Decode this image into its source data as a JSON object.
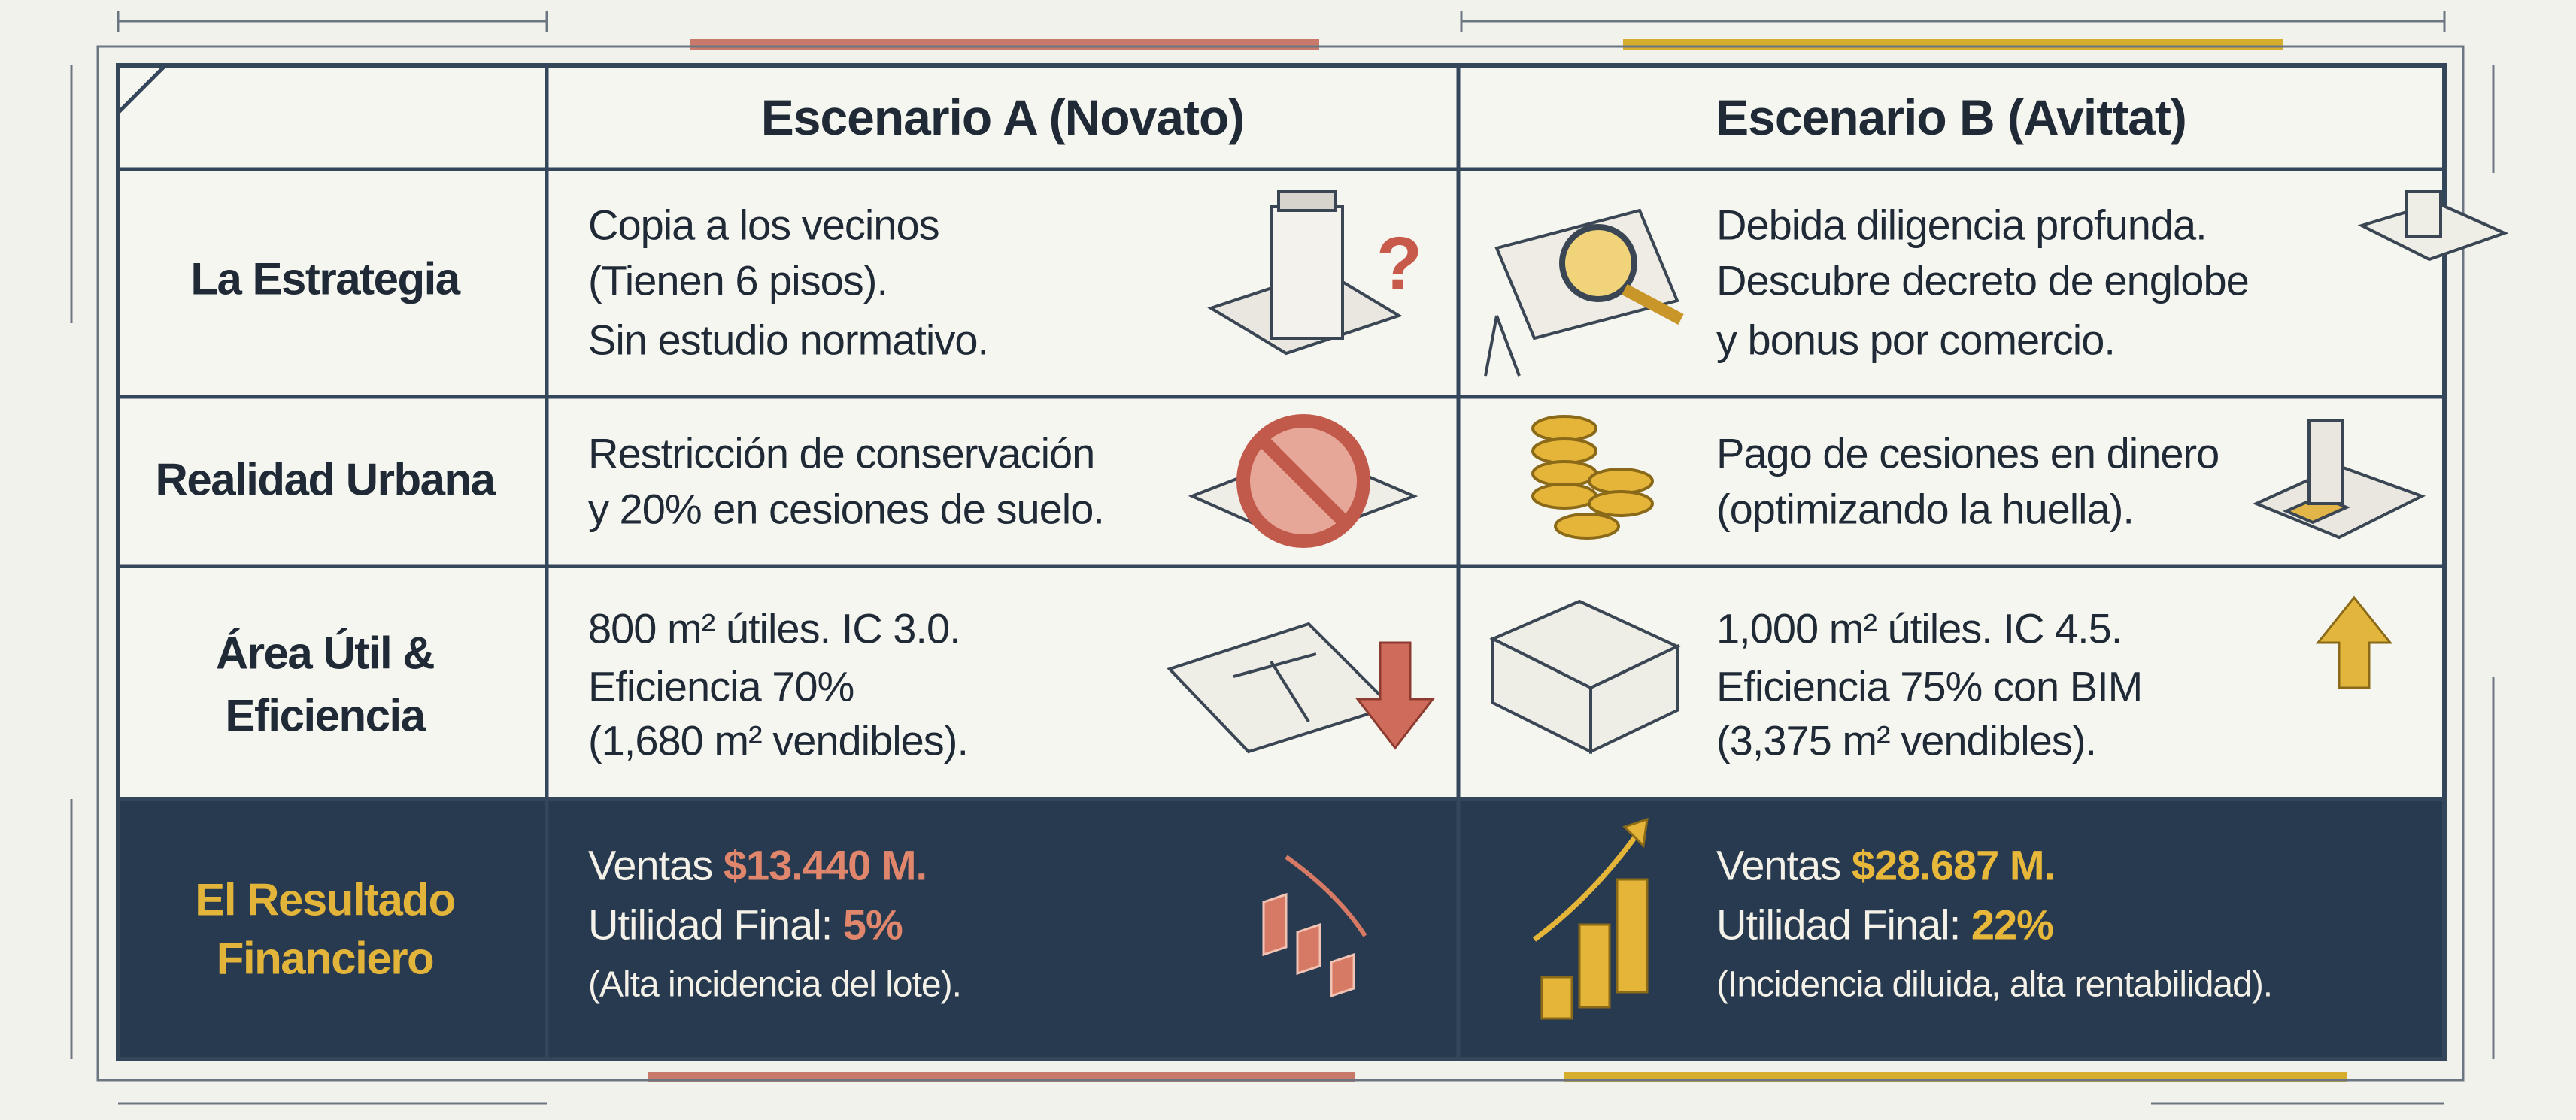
{
  "table": {
    "header": [
      "Escenario A (Novato)",
      "Escenario B (Avittat)"
    ],
    "rows": [
      {
        "label": [
          "La Estrategia"
        ],
        "a": [
          "Copia a los vecinos",
          "(Tienen 6 pisos).",
          "Sin estudio normativo."
        ],
        "b": [
          "Debida diligencia profunda.",
          "Descubre decreto de englobe",
          "y bonus por comercio."
        ]
      },
      {
        "label": [
          "Realidad Urbana"
        ],
        "a": [
          "Restricción de conservación",
          "y 20% en cesiones de suelo."
        ],
        "b": [
          "Pago de cesiones en dinero",
          "(optimizando la huella)."
        ]
      },
      {
        "label": [
          "Área Útil &",
          "Eficiencia"
        ],
        "a": [
          "800 m² útiles. IC 3.0.",
          "Eficiencia 70%",
          "(1,680 m² vendibles)."
        ],
        "b": [
          "1,000 m² útiles. IC 4.5.",
          "Eficiencia 75% con BIM",
          "(3,375 m² vendibles)."
        ]
      }
    ],
    "result": {
      "label": [
        "El Resultado",
        "Financiero"
      ],
      "a": {
        "sales_label": "Ventas",
        "sales_value": "$13.440 M.",
        "profit_label": "Utilidad Final:",
        "profit_value": "5%",
        "note": "(Alta incidencia del lote)."
      },
      "b": {
        "sales_label": "Ventas",
        "sales_value": "$28.687 M.",
        "profit_label": "Utilidad Final:",
        "profit_value": "22%",
        "note": "(Incidencia diluida, alta rentabilidad)."
      }
    }
  }
}
